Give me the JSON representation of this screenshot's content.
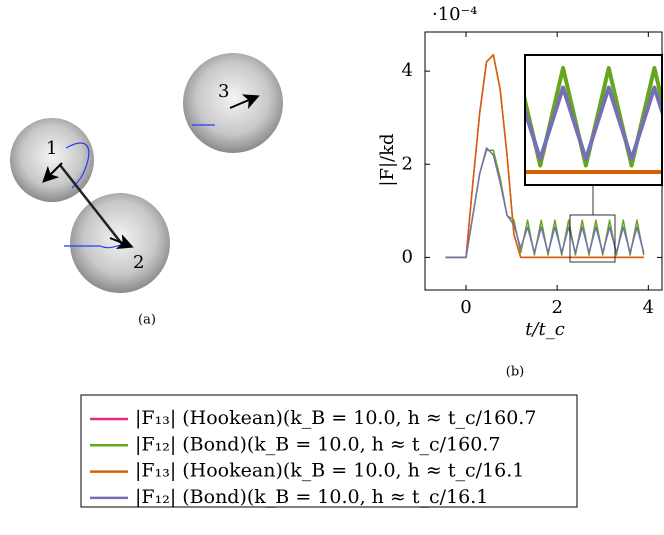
{
  "panel_a": {
    "particles": [
      "1",
      "2",
      "3"
    ],
    "caption": "(a)"
  },
  "chart_data": {
    "type": "line",
    "caption": "(b)",
    "x_label": "t/t_c",
    "y_label": "|F|/kd",
    "y_exponent": "·10⁻⁴",
    "xlim": [
      -0.9,
      4.3
    ],
    "xticks": [
      0,
      2,
      4
    ],
    "ylim": [
      -0.7,
      4.84
    ],
    "yticks": [
      0,
      2,
      4
    ],
    "x": [
      -0.45,
      -0.3,
      -0.15,
      0,
      0.15,
      0.3,
      0.45,
      0.6,
      0.75,
      0.9,
      1.05,
      1.2,
      1.35,
      1.5,
      1.65,
      1.8,
      1.95,
      2.1,
      2.25,
      2.4,
      2.55,
      2.7,
      2.85,
      3.0,
      3.15,
      3.3,
      3.45,
      3.6,
      3.75,
      3.9
    ],
    "series": [
      {
        "name": "|F₁₃| (Hookean)(k_B = 10.0, h ≈ t_c/160.7",
        "color": "#e7298a",
        "values": [
          0,
          0,
          0,
          0,
          1.6,
          3.1,
          4.2,
          4.35,
          3.6,
          2.2,
          0.5,
          0,
          0,
          0,
          0,
          0,
          0,
          0,
          0,
          0,
          0,
          0,
          0,
          0,
          0,
          0,
          0,
          0,
          0,
          0
        ]
      },
      {
        "name": "|F₁₂| (Bond)(k_B = 10.0, h ≈ t_c/160.7",
        "color": "#66a61e",
        "values": [
          0,
          0,
          0,
          0,
          0.9,
          1.8,
          2.3,
          2.3,
          1.7,
          0.9,
          0.8,
          0.1,
          0.8,
          0.05,
          0.8,
          0.05,
          0.8,
          0.05,
          0.8,
          0.05,
          0.8,
          0.05,
          0.8,
          0.05,
          0.8,
          0.05,
          0.8,
          0.05,
          0.8,
          0.05
        ]
      },
      {
        "name": "|F₁₃| (Hookean)(k_B = 10.0, h ≈ t_c/16.1",
        "color": "#d95f02",
        "values": [
          0,
          0,
          0,
          0,
          1.6,
          3.1,
          4.2,
          4.35,
          3.6,
          2.2,
          0.5,
          0,
          0,
          0,
          0,
          0,
          0,
          0,
          0,
          0,
          0,
          0,
          0,
          0,
          0,
          0,
          0,
          0,
          0,
          0
        ]
      },
      {
        "name": "|F₁₂| (Bond)(k_B = 10.0, h ≈ t_c/16.1",
        "color": "#7570b3",
        "values": [
          0,
          0,
          0,
          0,
          0.9,
          1.8,
          2.35,
          2.2,
          1.6,
          0.9,
          0.7,
          0.2,
          0.65,
          0.1,
          0.65,
          0.1,
          0.65,
          0.1,
          0.65,
          0.1,
          0.65,
          0.1,
          0.65,
          0.1,
          0.65,
          0.1,
          0.65,
          0.1,
          0.65,
          0.1
        ]
      }
    ]
  }
}
